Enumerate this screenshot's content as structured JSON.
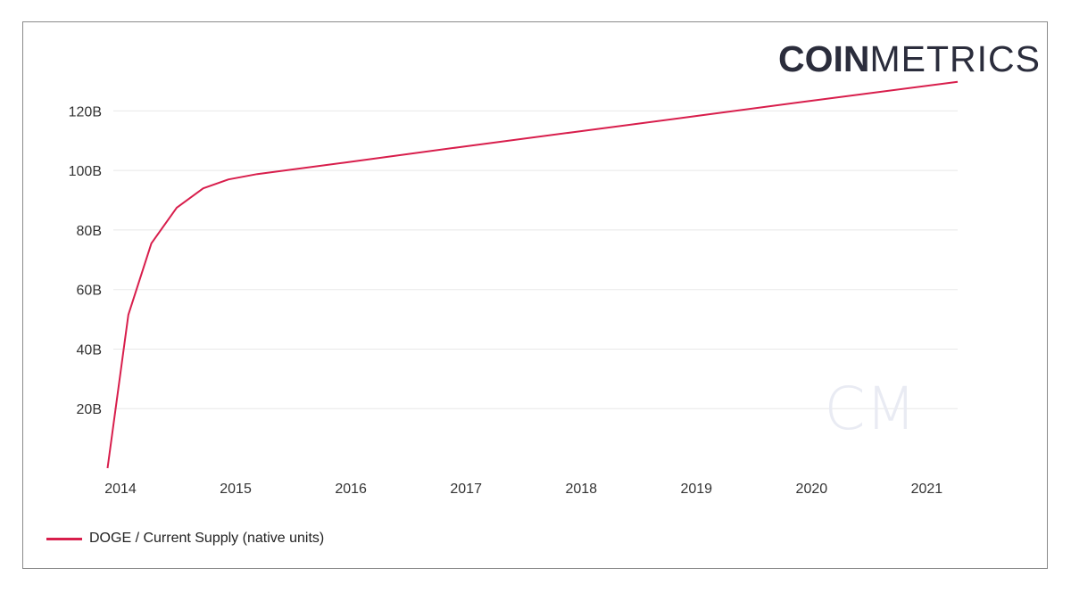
{
  "brand": {
    "bold": "COIN",
    "light": "METRICS",
    "watermark": "CM"
  },
  "colors": {
    "series": "#d81e4c",
    "grid": "#e8e8e8",
    "watermark": "#e9ebf3"
  },
  "chart_data": {
    "type": "line",
    "title": "",
    "xlabel": "",
    "ylabel": "",
    "xlim": [
      2014.0,
      2021.33
    ],
    "ylim": [
      0,
      130
    ],
    "y_ticks": [
      20,
      40,
      60,
      80,
      100,
      120
    ],
    "y_tick_labels": [
      "20B",
      "40B",
      "60B",
      "80B",
      "100B",
      "120B"
    ],
    "x_ticks": [
      2014,
      2015,
      2016,
      2017,
      2018,
      2019,
      2020,
      2021
    ],
    "x_tick_labels": [
      "2014",
      "2015",
      "2016",
      "2017",
      "2018",
      "2019",
      "2020",
      "2021"
    ],
    "grid": true,
    "legend_position": "bottom-left",
    "series": [
      {
        "name": "DOGE / Current Supply (native units)",
        "x": [
          2013.95,
          2014.13,
          2014.33,
          2014.55,
          2014.78,
          2015.0,
          2015.25,
          2016.0,
          2017.0,
          2018.0,
          2019.0,
          2020.0,
          2021.33
        ],
        "y": [
          0,
          51.5,
          75.5,
          87.5,
          94,
          97,
          98.8,
          102.6,
          107.8,
          112.9,
          118.0,
          123.1,
          129.8
        ]
      }
    ]
  },
  "legend": {
    "label": "DOGE / Current Supply (native units)"
  }
}
